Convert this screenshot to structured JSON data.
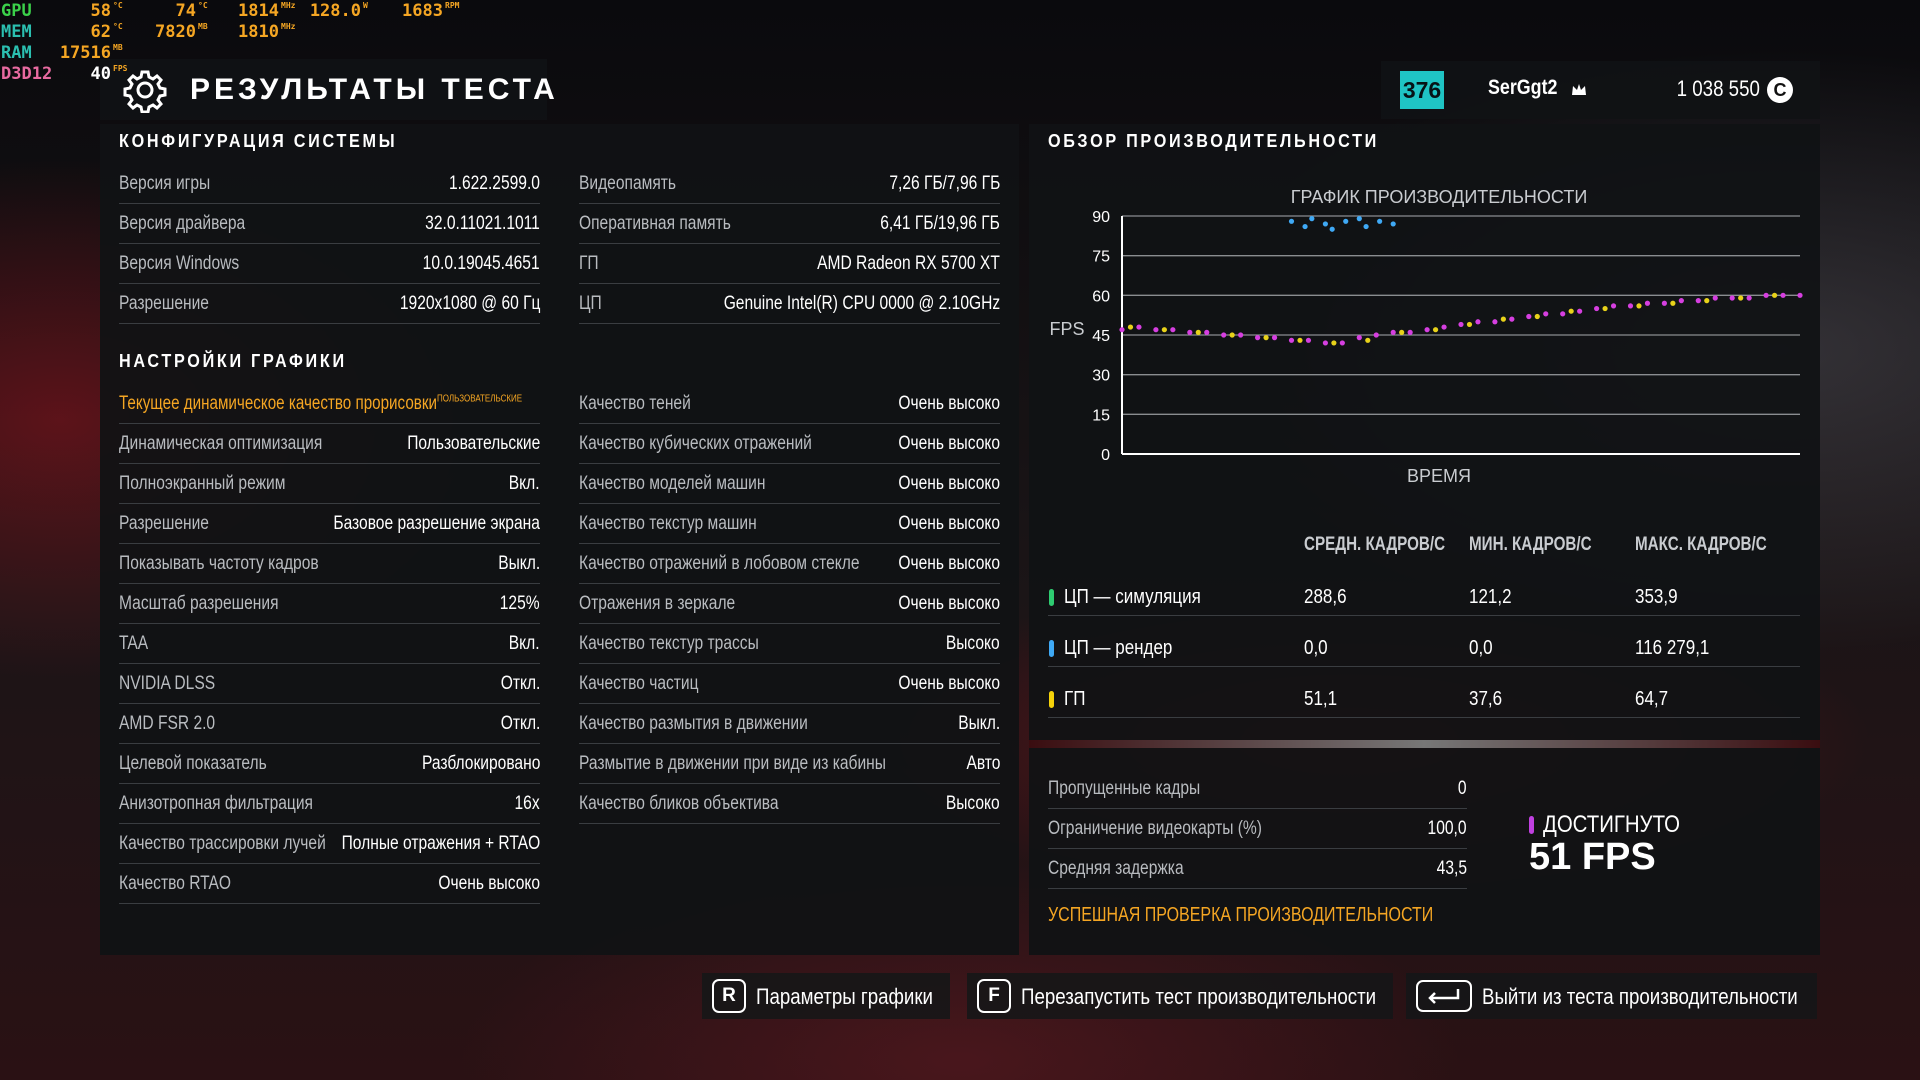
{
  "overlay": {
    "rows": [
      {
        "label": "GPU",
        "items": [
          {
            "value": "58",
            "unit": "°C"
          },
          {
            "value": "74",
            "unit": "°C"
          },
          {
            "value": "1814",
            "unit": "MHz"
          },
          {
            "value": "128.0",
            "unit": "W"
          },
          {
            "value": "1683",
            "unit": "RPM"
          }
        ]
      },
      {
        "label": "MEM",
        "items": [
          {
            "value": "62",
            "unit": "°C"
          },
          {
            "value": "7820",
            "unit": "MB"
          },
          {
            "value": "1810",
            "unit": "MHz"
          }
        ]
      },
      {
        "label": "RAM",
        "items": [
          {
            "value": "17516",
            "unit": "MB"
          }
        ]
      },
      {
        "label": "D3D12",
        "items": [
          {
            "value": "40",
            "unit": "FPS"
          }
        ]
      }
    ]
  },
  "header": {
    "title": "РЕЗУЛЬТАТЫ ТЕСТА"
  },
  "player": {
    "level": "376",
    "name": "SerGgt2",
    "credits": "1 038 550",
    "currency": "C"
  },
  "system_config": {
    "title": "КОНФИГУРАЦИЯ СИСТЕМЫ",
    "left": [
      {
        "label": "Версия игры",
        "value": "1.622.2599.0"
      },
      {
        "label": "Версия драйвера",
        "value": "32.0.11021.1011"
      },
      {
        "label": "Версия Windows",
        "value": "10.0.19045.4651"
      },
      {
        "label": "Разрешение",
        "value": "1920x1080 @ 60 Гц"
      }
    ],
    "right": [
      {
        "label": "Видеопамять",
        "value": "7,26 ГБ/7,96 ГБ"
      },
      {
        "label": "Оперативная память",
        "value": "6,41 ГБ/19,96 ГБ"
      },
      {
        "label": "ГП",
        "value": "AMD Radeon RX 5700 XT"
      },
      {
        "label": "ЦП",
        "value": "Genuine Intel(R) CPU 0000 @ 2.10GHz"
      }
    ]
  },
  "graphics_settings": {
    "title": "НАСТРОЙКИ ГРАФИКИ",
    "highlight": {
      "label": "Текущее динамическое качество прорисовки",
      "tag": "ПОЛЬЗОВАТЕЛЬСКИЕ"
    },
    "left": [
      {
        "label": "Динамическая оптимизация",
        "value": "Пользовательские"
      },
      {
        "label": "Полноэкранный режим",
        "value": "Вкл."
      },
      {
        "label": "Разрешение",
        "value": "Базовое разрешение экрана"
      },
      {
        "label": "Показывать частоту кадров",
        "value": "Выкл."
      },
      {
        "label": "Масштаб разрешения",
        "value": "125%"
      },
      {
        "label": "TAA",
        "value": "Вкл."
      },
      {
        "label": "NVIDIA DLSS",
        "value": "Откл."
      },
      {
        "label": "AMD FSR 2.0",
        "value": "Откл."
      },
      {
        "label": "Целевой показатель",
        "value": "Разблокировано"
      },
      {
        "label": "Анизотропная фильтрация",
        "value": "16x"
      },
      {
        "label": "Качество трассировки лучей",
        "value": "Полные отражения + RTAO"
      },
      {
        "label": "Качество RTAO",
        "value": "Очень высоко"
      }
    ],
    "right": [
      {
        "label": "Качество теней",
        "value": "Очень высоко"
      },
      {
        "label": "Качество кубических отражений",
        "value": "Очень высоко"
      },
      {
        "label": "Качество моделей машин",
        "value": "Очень высоко"
      },
      {
        "label": "Качество текстур машин",
        "value": "Очень высоко"
      },
      {
        "label": "Качество отражений в лобовом стекле",
        "value": "Очень высоко"
      },
      {
        "label": "Отражения в зеркале",
        "value": "Очень высоко"
      },
      {
        "label": "Качество текстур трассы",
        "value": "Высоко"
      },
      {
        "label": "Качество частиц",
        "value": "Очень высоко"
      },
      {
        "label": "Качество размытия в движении",
        "value": "Выкл."
      },
      {
        "label": "Размытие в движении при виде из кабины",
        "value": "Авто"
      },
      {
        "label": "Качество бликов объектива",
        "value": "Высоко"
      }
    ]
  },
  "performance": {
    "title": "ОБЗОР ПРОИЗВОДИТЕЛЬНОСТИ",
    "graph": {
      "type": "scatter",
      "title": "ГРАФИК ПРОИЗВОДИТЕЛЬНОСТИ",
      "y_label": "FPS",
      "x_label": "ВРЕМЯ",
      "xlim": [
        0,
        100
      ],
      "ylim": [
        0,
        90
      ],
      "yticks": [
        0,
        15,
        30,
        45,
        60,
        75,
        90
      ],
      "grid": true,
      "series": [
        {
          "color": "#d63fe0",
          "x": [
            0,
            2.5,
            5,
            7.5,
            10,
            12.5,
            15,
            17.5,
            20,
            22.5,
            25,
            27.5,
            30,
            32.5,
            35,
            37.5,
            40,
            42.5,
            45,
            47.5,
            50,
            52.5,
            55,
            57.5,
            60,
            62.5,
            65,
            67.5,
            70,
            72.5,
            75,
            77.5,
            80,
            82.5,
            85,
            87.5,
            90,
            92.5,
            95,
            97.5,
            100
          ],
          "values": [
            47,
            48,
            47,
            47,
            46,
            46,
            45,
            45,
            44,
            44,
            43,
            43,
            42,
            42,
            44,
            45,
            46,
            46,
            47,
            48,
            49,
            50,
            50,
            51,
            52,
            53,
            53,
            54,
            55,
            56,
            56,
            57,
            57,
            58,
            58,
            59,
            59,
            59,
            60,
            60,
            60
          ]
        },
        {
          "color": "#e8d21a",
          "x": [
            1.25,
            6.25,
            11.25,
            16.25,
            21.25,
            26.25,
            31.25,
            36.25,
            41.25,
            46.25,
            51.25,
            56.25,
            61.25,
            66.25,
            71.25,
            76.25,
            81.25,
            86.25,
            91.25,
            96.25
          ],
          "values": [
            48,
            47,
            46,
            45,
            44,
            43,
            42,
            43,
            46,
            47,
            49,
            51,
            52,
            54,
            55,
            56,
            57,
            58,
            59,
            60
          ]
        },
        {
          "color": "#3fa9f5",
          "x": [
            25,
            27,
            28,
            30,
            31,
            33,
            35,
            36,
            38,
            40
          ],
          "values": [
            88,
            86,
            89,
            87,
            85,
            88,
            89,
            86,
            88,
            87
          ]
        }
      ]
    },
    "stats": {
      "columns": [
        "СРЕДН. КАДРОВ/С",
        "МИН. КАДРОВ/С",
        "МАКС. КАДРОВ/С"
      ],
      "rows": [
        {
          "label": "ЦП — симуляция",
          "color": "#2ecc71",
          "values": [
            "288,6",
            "121,2",
            "353,9"
          ]
        },
        {
          "label": "ЦП — рендер",
          "color": "#3fa9f5",
          "values": [
            "0,0",
            "0,0",
            "116 279,1"
          ]
        },
        {
          "label": "ГП",
          "color": "#f5d20a",
          "values": [
            "51,1",
            "37,6",
            "64,7"
          ]
        }
      ]
    }
  },
  "summary": {
    "rows": [
      {
        "label": "Пропущенные кадры",
        "value": "0"
      },
      {
        "label": "Ограничение видеокарты (%)",
        "value": "100,0"
      },
      {
        "label": "Средняя задержка",
        "value": "43,5"
      }
    ],
    "status": "УСПЕШНАЯ ПРОВЕРКА ПРОИЗВОДИТЕЛЬНОСТИ",
    "achieved": {
      "label": "ДОСТИГНУТО",
      "value": "51 FPS"
    }
  },
  "buttons": [
    {
      "key": "R",
      "label": "Параметры графики"
    },
    {
      "key": "F",
      "label": "Перезапустить тест производительности"
    },
    {
      "label": "Выйти из теста производительности"
    }
  ]
}
